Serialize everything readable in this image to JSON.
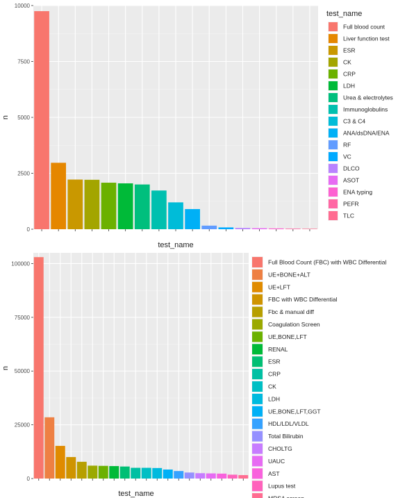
{
  "chart_data": [
    {
      "type": "bar",
      "xlabel": "test_name",
      "ylabel": "n",
      "ylim": [
        0,
        10000
      ],
      "yticks": [
        0,
        2500,
        5000,
        7500,
        10000
      ],
      "ytick_labels": [
        "0",
        "2500",
        "5000",
        "7500",
        "10000"
      ],
      "grid": true,
      "legend_title": "test_name",
      "legend_position": "right",
      "categories": [
        "Full blood count",
        "Liver function test",
        "ESR",
        "CK",
        "CRP",
        "LDH",
        "Urea & electrolytes",
        "Immunoglobulins",
        "C3 & C4",
        "ANA/dsDNA/ENA",
        "RF",
        "VC",
        "DLCO",
        "ASOT",
        "ENA typing",
        "PEFR",
        "TLC"
      ],
      "values": [
        9750,
        2970,
        2220,
        2210,
        2080,
        2050,
        2000,
        1730,
        1200,
        900,
        160,
        80,
        55,
        45,
        35,
        25,
        20
      ],
      "colors": [
        "#F8766D",
        "#E58700",
        "#C99800",
        "#A3A500",
        "#6BB100",
        "#00BA38",
        "#00BF7D",
        "#00C0AF",
        "#00BCD8",
        "#00B0F6",
        "#619CFF",
        "#00A9FF",
        "#B983FF",
        "#E76BF3",
        "#FD61D1",
        "#FF67A4",
        "#FF6C91"
      ]
    },
    {
      "type": "bar",
      "xlabel": "test_name",
      "ylabel": "n",
      "ylim": [
        0,
        105000
      ],
      "yticks": [
        0,
        25000,
        50000,
        75000,
        100000
      ],
      "ytick_labels": [
        "0",
        "25000",
        "50000",
        "75000",
        "100000"
      ],
      "grid": true,
      "legend_position": "right",
      "categories": [
        "Full Blood Count (FBC) with WBC Differential",
        "UE+BONE+ALT",
        "UE+LFT",
        "FBC with WBC Differential",
        "Fbc & manual diff",
        "Coagulation Screen",
        "UE,BONE,LFT",
        "RENAL",
        "ESR",
        "CRP",
        "CK",
        "LDH",
        "UE,BONE,LFT,GGT",
        "HDL/LDL/VLDL",
        "Total Bilirubin",
        "CHOLTG",
        "UAUC",
        "AST",
        "Lupus test",
        "MRSA screen"
      ],
      "values": [
        103000,
        28500,
        15200,
        10000,
        7800,
        6000,
        5900,
        5800,
        5600,
        5000,
        5000,
        4900,
        4200,
        3500,
        2800,
        2500,
        2400,
        2300,
        1800,
        1600
      ],
      "colors": [
        "#F8766D",
        "#EE8043",
        "#E08B00",
        "#CF9400",
        "#B79F00",
        "#9BA900",
        "#6BB100",
        "#00BA38",
        "#00BF74",
        "#00C0A3",
        "#00BFC4",
        "#00BADE",
        "#00B0F6",
        "#35A2FF",
        "#9590FF",
        "#C77CFF",
        "#E76BF3",
        "#F962DD",
        "#FF62BC",
        "#FF6C91"
      ]
    }
  ]
}
